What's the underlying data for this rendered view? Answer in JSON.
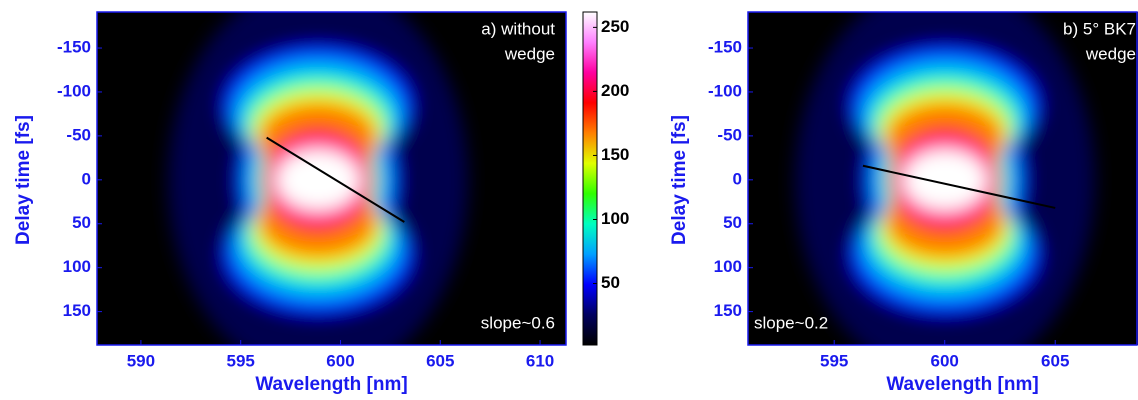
{
  "chart_data": [
    {
      "type": "heatmap",
      "xlabel": "Wavelength [nm]",
      "ylabel": "Delay time [fs]",
      "xlim": [
        587.8,
        611.3
      ],
      "xticks": [
        590,
        595,
        600,
        605,
        610
      ],
      "ylim": [
        -191,
        188
      ],
      "y_inverted": true,
      "yticks": [
        -150,
        -100,
        -50,
        0,
        50,
        100,
        150
      ],
      "annotation": [
        "a) without",
        "wedge"
      ],
      "slope_label": "slope~0.6",
      "fit_line": {
        "x": [
          596.3,
          603.2
        ],
        "y": [
          -48,
          48
        ],
        "color": "#000000"
      }
    },
    {
      "type": "heatmap",
      "xlabel": "Wavelength [nm]",
      "ylabel": "Delay time [fs]",
      "xlim": [
        591.1,
        608.7
      ],
      "xticks": [
        595,
        600,
        605
      ],
      "ylim": [
        -191,
        188
      ],
      "y_inverted": true,
      "yticks": [
        -150,
        -100,
        -50,
        0,
        50,
        100,
        150
      ],
      "annotation": [
        "b) 5° BK7",
        "wedge"
      ],
      "slope_label": "slope~0.2",
      "fit_line": {
        "x": [
          596.3,
          605.0
        ],
        "y": [
          -16,
          32
        ],
        "color": "#000000"
      }
    },
    {
      "type": "colorbar",
      "clim": [
        2,
        262
      ],
      "ticks": [
        50,
        100,
        150,
        200,
        250
      ],
      "colormap": [
        "#000000",
        "#000060",
        "#0000ff",
        "#00a0ff",
        "#00ffc0",
        "#30ff00",
        "#e0ff00",
        "#ff8000",
        "#ff0000",
        "#ff00a0",
        "#ff80ff",
        "#ffffff"
      ]
    }
  ]
}
